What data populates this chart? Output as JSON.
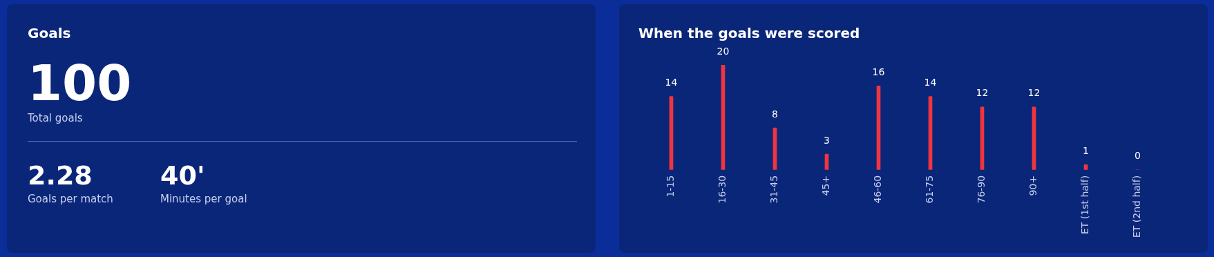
{
  "chart_data": [
    {
      "type": "other",
      "title": "Goals",
      "annotations": [
        "100",
        "Total goals",
        "2.28",
        "Goals per match",
        "40'",
        "Minutes per goal"
      ]
    },
    {
      "type": "bar",
      "title": "When the goals were scored",
      "categories": [
        "1-15",
        "16-30",
        "31-45",
        "45+",
        "46-60",
        "61-75",
        "76-90",
        "90+",
        "ET (1st half)",
        "ET (2nd half)"
      ],
      "values": [
        14,
        20,
        8,
        3,
        16,
        14,
        12,
        12,
        1,
        0
      ],
      "color": "#f0353f",
      "data_labels": true,
      "grid": false
    }
  ]
}
